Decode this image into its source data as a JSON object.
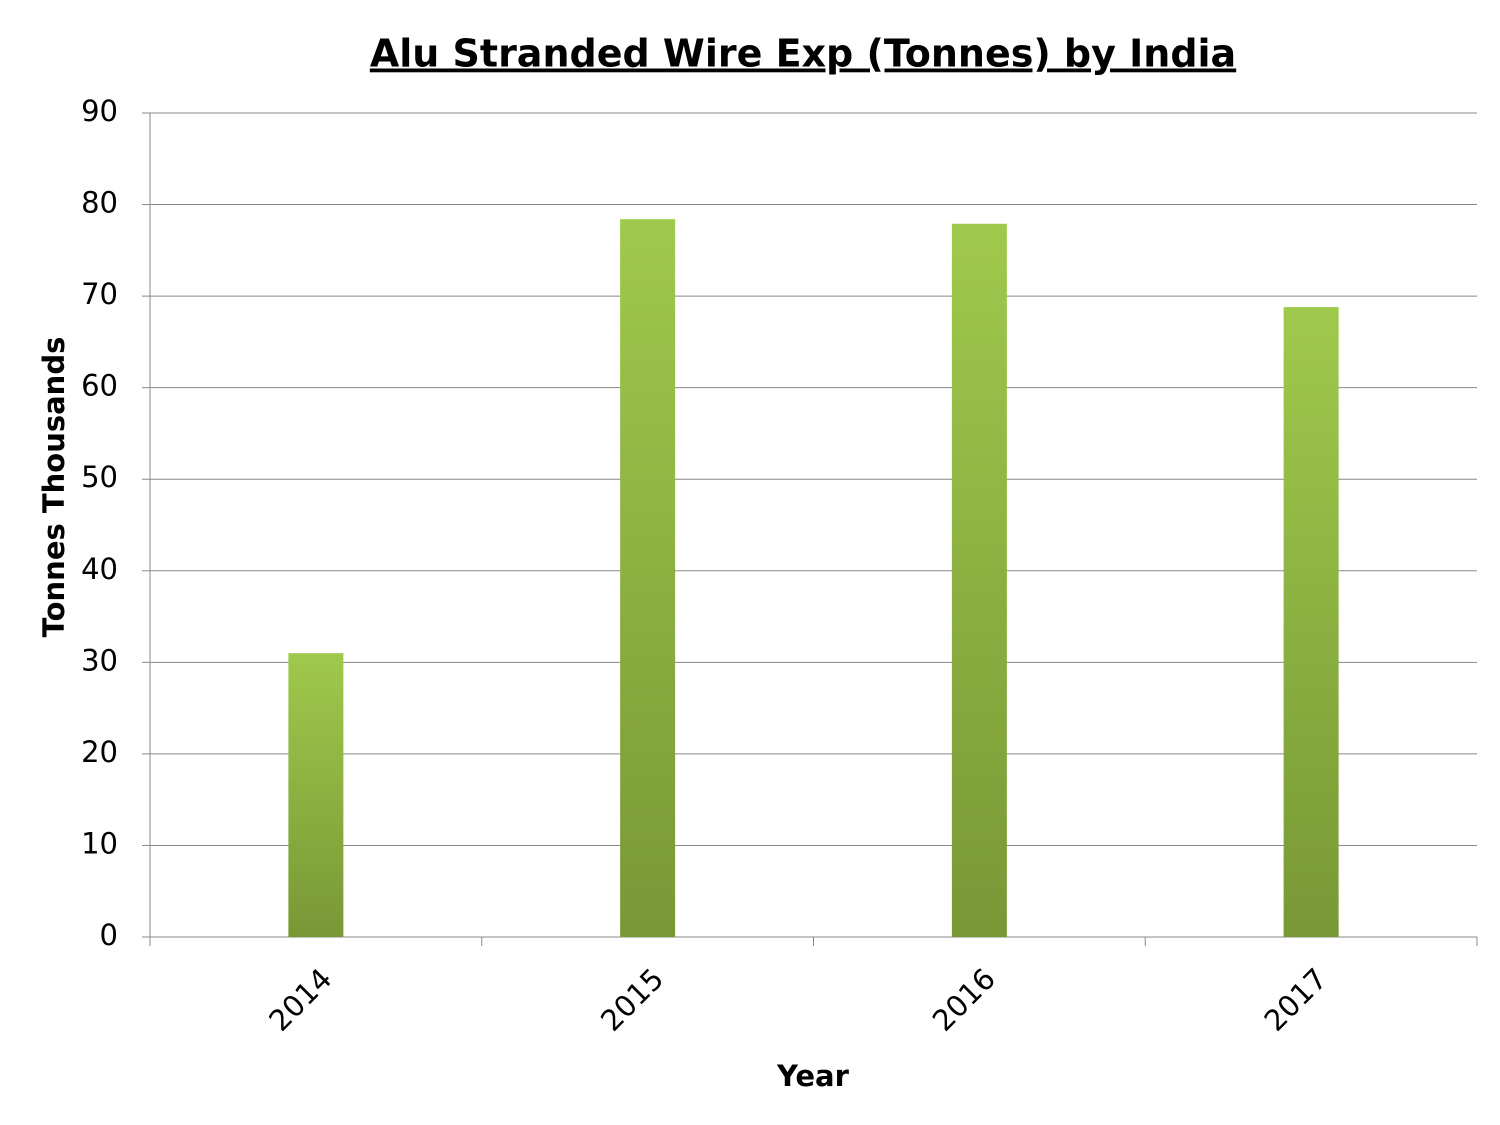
{
  "chart_data": {
    "type": "bar",
    "title": "Alu Stranded Wire Exp (Tonnes) by India",
    "x_label": "Year",
    "y_label": "Tonnes Thousands",
    "categories": [
      "2014",
      "2015",
      "2016",
      "2017"
    ],
    "values": [
      31,
      78.4,
      77.9,
      68.8
    ],
    "gradient": [
      "#9fc94c",
      "#789836"
    ],
    "ylim": [
      0,
      90
    ],
    "yticks": [
      0,
      10,
      20,
      30,
      40,
      50,
      60,
      70,
      80,
      90
    ],
    "grid": true
  }
}
